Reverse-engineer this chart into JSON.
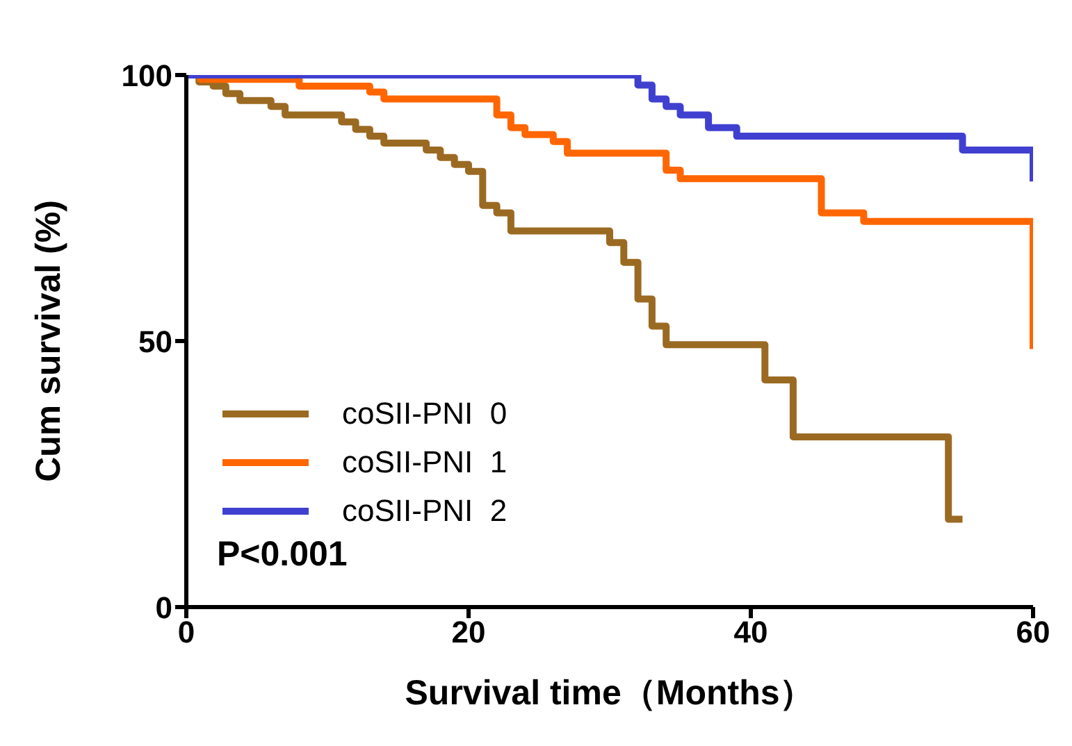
{
  "chart_data": {
    "type": "step",
    "xlabel": "Survival time（Months）",
    "ylabel": "Cum survival (%)",
    "xlim": [
      0,
      60
    ],
    "xticks": [
      0,
      20,
      40,
      60
    ],
    "ylim": [
      0,
      100
    ],
    "yticks": [
      0,
      50,
      100
    ],
    "grid": false,
    "legend": "bottom left",
    "marker": "none",
    "line_style": "solid",
    "annotations": [
      "P<0.001"
    ],
    "series": [
      {
        "name": "coSII-PNI  0",
        "color": "#9b6a22",
        "x": [
          0,
          0.9,
          1.9,
          2.8,
          3.8,
          6,
          7,
          11,
          12,
          13,
          14,
          17,
          18,
          19,
          20,
          21,
          22,
          23,
          30,
          31,
          32,
          33,
          34,
          41,
          43,
          54,
          55
        ],
        "values": [
          100,
          98.7,
          97.9,
          96.5,
          95.2,
          94.1,
          92.5,
          91.2,
          89.8,
          88.5,
          87.2,
          85.9,
          84.5,
          83.2,
          81.9,
          75.5,
          74.1,
          70.7,
          68.5,
          64.8,
          57.9,
          52.8,
          49.3,
          42.7,
          32,
          16.5,
          16.5
        ]
      },
      {
        "name": "coSII-PNI  1",
        "color": "#ff6600",
        "x": [
          0,
          1,
          8,
          13,
          14,
          22,
          23,
          24,
          26,
          27,
          34,
          35,
          45,
          48,
          60
        ],
        "values": [
          100,
          99.2,
          97.9,
          96.8,
          95.5,
          92.5,
          90.1,
          88.8,
          87.5,
          85.3,
          82.1,
          80.5,
          74.1,
          72.5,
          48.5
        ]
      },
      {
        "name": "coSII-PNI  2",
        "color": "#4040d0",
        "x": [
          0,
          32,
          33,
          34,
          35,
          37,
          39,
          55,
          60
        ],
        "values": [
          100,
          98.1,
          95.5,
          94.1,
          92.5,
          90.1,
          88.5,
          85.9,
          80
        ]
      }
    ]
  }
}
